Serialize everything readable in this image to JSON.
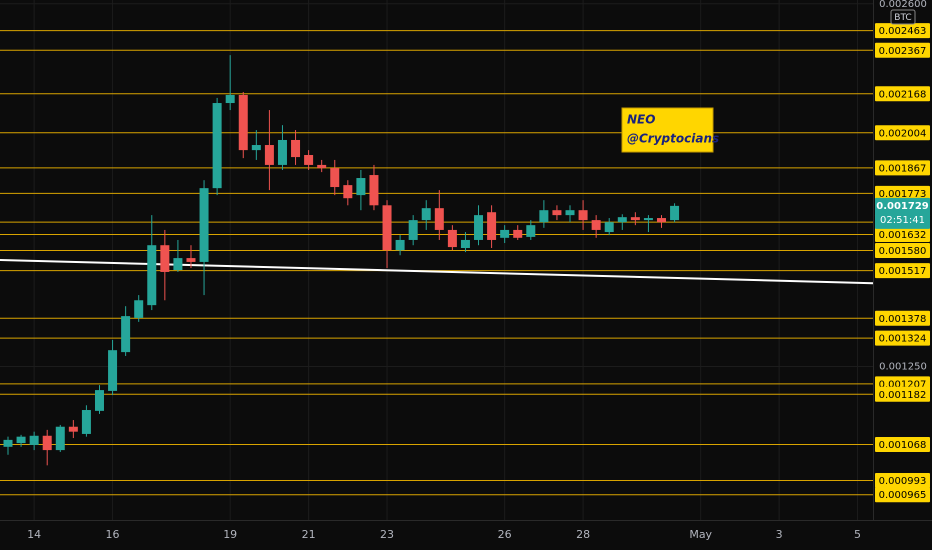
{
  "chart_data": {
    "type": "candlestick",
    "currency": "BTC",
    "annotation": [
      "NEO",
      "@Cryptocians"
    ],
    "countdown": "02:51:41",
    "log_scale": true,
    "grid": true,
    "up_color": "#26a69a",
    "down_color": "#ef5350",
    "level_color": "#d9a400",
    "label_color": "#ffd600",
    "categories": [
      null,
      null,
      "14",
      null,
      null,
      null,
      null,
      null,
      "16",
      null,
      null,
      null,
      null,
      null,
      null,
      null,
      null,
      "19",
      null,
      null,
      null,
      null,
      null,
      "21",
      null,
      null,
      null,
      null,
      null,
      "23",
      null,
      null,
      null,
      null,
      null,
      null,
      null,
      null,
      "26",
      null,
      null,
      null,
      null,
      null,
      "28",
      null,
      null,
      null,
      null,
      null,
      null,
      null,
      null,
      "May",
      null,
      null,
      null,
      null,
      null,
      "3",
      null,
      null,
      null,
      null,
      null,
      "5"
    ],
    "open": [
      0.001063,
      0.001071,
      0.001067,
      0.001087,
      0.001056,
      0.001107,
      0.001091,
      0.001143,
      0.00119,
      0.001287,
      0.001379,
      0.001415,
      0.001597,
      0.001519,
      0.001556,
      0.001544,
      0.001792,
      0.002128,
      0.002163,
      0.001935,
      0.001955,
      0.001878,
      0.001975,
      0.001916,
      0.001878,
      0.001866,
      0.001803,
      0.001767,
      0.00184,
      0.001731,
      0.001581,
      0.001614,
      0.00168,
      0.001721,
      0.001647,
      0.001588,
      0.001614,
      0.001707,
      0.001621,
      0.001647,
      0.001624,
      0.001673,
      0.001714,
      0.001697,
      0.001714,
      0.00168,
      0.00164,
      0.001673,
      0.00169,
      0.00168,
      0.001687,
      0.00168,
      null,
      null,
      null,
      null,
      null,
      null,
      null,
      null,
      null,
      null,
      null,
      null,
      null,
      null
    ],
    "high": [
      0.001085,
      0.001089,
      0.001096,
      0.0011,
      0.001111,
      0.001122,
      0.001156,
      0.001204,
      0.001319,
      0.001412,
      0.001444,
      0.001697,
      0.001647,
      0.001614,
      0.001597,
      0.001821,
      0.00215,
      0.002344,
      0.002176,
      0.002015,
      0.002098,
      0.002035,
      0.002015,
      0.001935,
      0.001897,
      0.001897,
      0.001821,
      0.001859,
      0.001878,
      0.001749,
      0.00163,
      0.001697,
      0.001749,
      0.001785,
      0.001663,
      0.00164,
      0.001731,
      0.001731,
      0.001663,
      0.001663,
      0.00168,
      0.001749,
      0.001731,
      0.001731,
      0.001749,
      0.001697,
      0.001687,
      0.0017,
      0.001707,
      0.001697,
      0.001697,
      0.001738,
      null,
      null,
      null,
      null,
      null,
      null,
      null,
      null,
      null,
      null,
      null,
      null,
      null,
      null
    ],
    "low": [
      0.001046,
      0.001063,
      0.001056,
      0.001024,
      0.001052,
      0.001082,
      0.001085,
      0.001136,
      0.00118,
      0.001277,
      0.001368,
      0.001401,
      0.001429,
      0.001513,
      0.001525,
      0.001444,
      0.001767,
      0.002098,
      0.001904,
      0.001897,
      0.001785,
      0.001859,
      0.001878,
      0.001859,
      0.001851,
      0.001767,
      0.001731,
      0.001714,
      0.001714,
      0.001525,
      0.001565,
      0.001597,
      0.001647,
      0.001614,
      0.001581,
      0.001575,
      0.001597,
      0.001588,
      0.001604,
      0.001614,
      0.001614,
      0.001654,
      0.00168,
      0.001673,
      0.001647,
      0.001621,
      0.00163,
      0.001647,
      0.001663,
      0.00164,
      0.001654,
      0.001673,
      null,
      null,
      null,
      null,
      null,
      null,
      null,
      null,
      null,
      null,
      null,
      null,
      null,
      null
    ],
    "close": [
      0.001078,
      0.001085,
      0.001087,
      0.001056,
      0.001107,
      0.001096,
      0.001145,
      0.001192,
      0.001292,
      0.001384,
      0.001429,
      0.001597,
      0.001513,
      0.001556,
      0.001544,
      0.001792,
      0.002128,
      0.002163,
      0.001935,
      0.001955,
      0.001878,
      0.001975,
      0.001908,
      0.001878,
      0.001866,
      0.001796,
      0.001756,
      0.001829,
      0.001731,
      0.001581,
      0.001614,
      0.00168,
      0.001721,
      0.001647,
      0.001591,
      0.001614,
      0.001697,
      0.001614,
      0.001647,
      0.001621,
      0.001663,
      0.001714,
      0.001697,
      0.001714,
      0.00168,
      0.001647,
      0.001673,
      0.00169,
      0.00168,
      0.001687,
      0.001673,
      0.001729,
      null,
      null,
      null,
      null,
      null,
      null,
      null,
      null,
      null,
      null,
      null,
      null,
      null,
      null
    ],
    "levels": [
      0.002463,
      0.002367,
      0.002168,
      0.002004,
      0.001867,
      0.001773,
      0.001673,
      0.001632,
      {
        "value": 0.00158,
        "label": "0.001580"
      },
      0.001517,
      0.001378,
      0.001324,
      0.001207,
      0.001182,
      0.001068,
      0.000993,
      0.000965
    ],
    "trend_line": [
      0.00155,
      0.001479
    ],
    "ylim": [
      0.000917,
      0.00262
    ],
    "yticks": [
      {
        "value": 0.0026,
        "label": "0.002600"
      },
      {
        "value": 0.00125,
        "label": "0.001250"
      }
    ]
  }
}
